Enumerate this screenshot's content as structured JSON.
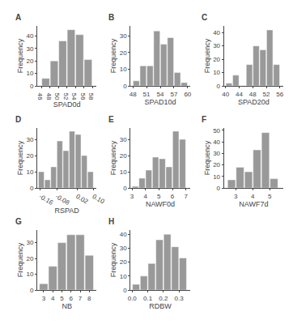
{
  "chart_data": [
    {
      "type": "bar",
      "title": "A",
      "xlabel": "SPAD0d",
      "ylabel": "Frequency",
      "x": [
        47,
        49,
        51,
        53,
        55,
        57
      ],
      "values": [
        6,
        20,
        36,
        45,
        41,
        21
      ],
      "color": "#999999",
      "grid": false,
      "xlim": [
        45.0,
        59.0
      ],
      "xticks": [
        46,
        48,
        50,
        52,
        54,
        56,
        58
      ],
      "ylim": [
        0,
        48
      ],
      "yticks": [
        0,
        10,
        20,
        30,
        40
      ]
    },
    {
      "type": "bar",
      "title": "B",
      "xlabel": "SPAD10d",
      "ylabel": "Frequency",
      "x": [
        48.75,
        50.25,
        51.75,
        53.25,
        54.75,
        56.25,
        57.75,
        59.25
      ],
      "values": [
        3,
        12,
        12,
        33,
        25,
        29,
        8,
        2
      ],
      "color": "#999999",
      "grid": false,
      "xlim": [
        47.5,
        60.5
      ],
      "xticks": [
        48,
        51,
        54,
        57,
        60
      ],
      "ylim": [
        0,
        36
      ],
      "yticks": [
        0,
        10,
        20,
        30
      ]
    },
    {
      "type": "bar",
      "title": "C",
      "xlabel": "SPAD20d",
      "ylabel": "Frequency",
      "x": [
        41,
        43,
        45,
        47,
        49,
        51,
        53,
        55
      ],
      "values": [
        2,
        8,
        0,
        16,
        30,
        27,
        42,
        16
      ],
      "color": "#999999",
      "grid": false,
      "xlim": [
        39.5,
        57.0
      ],
      "xticks": [
        40,
        44,
        48,
        52,
        56
      ],
      "ylim": [
        0,
        45
      ],
      "yticks": [
        0,
        10,
        20,
        30,
        40
      ]
    },
    {
      "type": "bar",
      "title": "D",
      "xlabel": "RSPAD",
      "ylabel": "Frequency",
      "x": [
        -0.155,
        -0.125,
        -0.095,
        -0.065,
        -0.035,
        -0.005,
        0.025,
        0.055,
        0.085
      ],
      "values": [
        10,
        5,
        13,
        29,
        23,
        35,
        33,
        20,
        10
      ],
      "color": "#999999",
      "grid": false,
      "xlim": [
        -0.175,
        0.115
      ],
      "xticks": [
        -0.16,
        -0.08,
        0.02,
        {
          "value": 0.1,
          "label": "0.10"
        }
      ],
      "ylim": [
        0,
        37
      ],
      "yticks": [
        0,
        10,
        20,
        30
      ]
    },
    {
      "type": "bar",
      "title": "E",
      "xlabel": "NAWF0d",
      "ylabel": "Frequency",
      "x": [
        3.25,
        3.75,
        4.25,
        4.75,
        5.25,
        5.75,
        6.25,
        6.75
      ],
      "values": [
        1,
        6,
        11,
        19,
        18,
        13,
        35,
        30
      ],
      "color": "#999999",
      "grid": false,
      "xlim": [
        2.9,
        7.3
      ],
      "xticks": [
        3,
        4,
        5,
        6,
        7
      ],
      "ylim": [
        0,
        37
      ],
      "yticks": [
        0,
        10,
        20,
        30
      ]
    },
    {
      "type": "bar",
      "title": "F",
      "xlabel": "NAWF7d",
      "ylabel": "Frequency",
      "x": [
        2.75,
        3.25,
        3.75,
        4.25,
        4.75,
        5.25
      ],
      "values": [
        7,
        18,
        14,
        33,
        48,
        8
      ],
      "color": "#999999",
      "grid": false,
      "xlim": [
        2.3,
        5.8
      ],
      "xticks": [
        3,
        4,
        5
      ],
      "ylim": [
        0,
        52
      ],
      "yticks": [
        0,
        10,
        20,
        30,
        40,
        50
      ]
    },
    {
      "type": "bar",
      "title": "G",
      "xlabel": "NB",
      "ylabel": "Frequency",
      "x": [
        3,
        4,
        5,
        6,
        7,
        8
      ],
      "values": [
        4,
        15,
        30,
        35,
        35,
        22
      ],
      "color": "#999999",
      "grid": false,
      "xlim": [
        2.3,
        8.8
      ],
      "xticks": [
        3,
        4,
        5,
        6,
        7,
        8
      ],
      "ylim": [
        0,
        38
      ],
      "yticks": [
        0,
        10,
        20,
        30
      ]
    },
    {
      "type": "bar",
      "title": "H",
      "xlabel": "RDBW",
      "ylabel": "Frequency",
      "x": [
        0.025,
        0.075,
        0.125,
        0.175,
        0.225,
        0.275,
        0.325
      ],
      "values": [
        4,
        10,
        19,
        36,
        40,
        31,
        23
      ],
      "color": "#999999",
      "grid": false,
      "xlim": [
        -0.01,
        0.37
      ],
      "xticks": [
        {
          "value": 0,
          "label": "0.0"
        },
        0.1,
        0.2,
        0.3
      ],
      "ylim": [
        0,
        43
      ],
      "yticks": [
        0,
        10,
        20,
        30,
        40
      ]
    }
  ]
}
